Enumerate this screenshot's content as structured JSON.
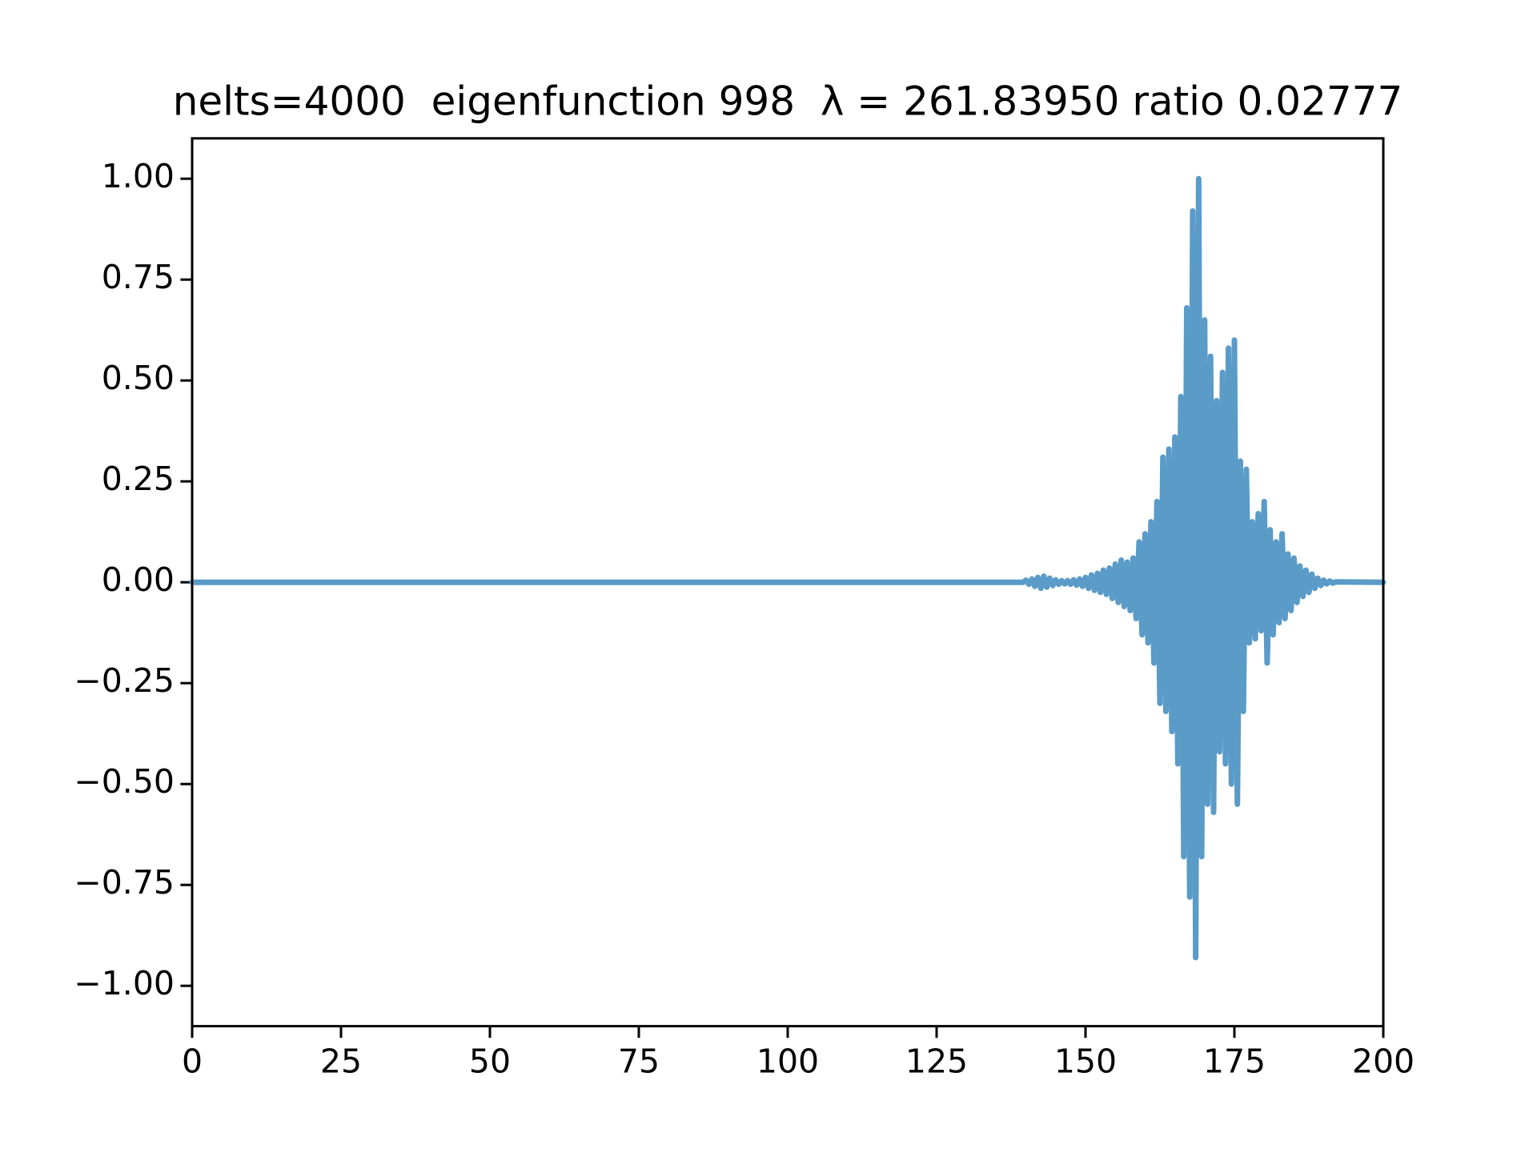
{
  "chart_data": {
    "type": "line",
    "title": "nelts=4000  eigenfunction 998  λ = 261.83950 ratio 0.02777",
    "x": [
      0,
      130,
      139.5,
      140,
      140.5,
      141,
      141.5,
      142,
      142.5,
      143,
      143.5,
      144,
      144.5,
      145,
      145.5,
      146,
      146.5,
      147,
      147.5,
      148,
      148.5,
      149,
      149.5,
      150,
      150.5,
      151,
      151.5,
      152,
      152.5,
      153,
      153.5,
      154,
      154.5,
      155,
      155.5,
      156,
      156.5,
      157,
      157.5,
      158,
      158.5,
      159,
      159.5,
      160,
      160.5,
      161,
      161.5,
      162,
      162.5,
      163,
      163.5,
      164,
      164.5,
      165,
      165.5,
      166,
      166.5,
      167,
      167.5,
      168,
      168.5,
      169,
      169.5,
      170,
      170.5,
      171,
      171.5,
      172,
      172.5,
      173,
      173.5,
      174,
      174.5,
      175,
      175.5,
      176,
      176.5,
      177,
      177.5,
      178,
      178.5,
      179,
      179.5,
      180,
      180.5,
      181,
      181.5,
      182,
      182.5,
      183,
      183.5,
      184,
      184.5,
      185,
      185.5,
      186,
      186.5,
      187,
      187.5,
      188,
      188.5,
      189,
      189.5,
      190,
      190.5,
      191,
      191.5,
      192,
      200
    ],
    "series": [
      {
        "name": "eigenfunction",
        "color": "#5a9bc8",
        "values": [
          0,
          0,
          0,
          0.005,
          -0.005,
          0.008,
          -0.01,
          0.012,
          -0.015,
          0.015,
          -0.012,
          0.01,
          -0.008,
          0.006,
          -0.005,
          0.004,
          -0.004,
          0.004,
          -0.005,
          0.006,
          -0.007,
          0.008,
          -0.01,
          0.012,
          -0.015,
          0.018,
          -0.02,
          0.022,
          -0.025,
          0.03,
          -0.03,
          0.035,
          -0.04,
          0.045,
          -0.05,
          0.055,
          -0.06,
          0.05,
          -0.07,
          0.06,
          -0.09,
          0.1,
          -0.13,
          0.12,
          -0.15,
          0.15,
          -0.2,
          0.2,
          -0.3,
          0.31,
          -0.32,
          0.33,
          -0.37,
          0.36,
          -0.45,
          0.46,
          -0.68,
          0.68,
          -0.78,
          0.92,
          -0.93,
          1.0,
          -0.68,
          0.65,
          -0.55,
          0.56,
          -0.57,
          0.45,
          -0.42,
          0.52,
          -0.45,
          0.58,
          -0.5,
          0.6,
          -0.55,
          0.3,
          -0.32,
          0.28,
          -0.15,
          0.15,
          -0.14,
          0.17,
          -0.12,
          0.2,
          -0.2,
          0.13,
          -0.13,
          0.1,
          -0.1,
          0.12,
          -0.09,
          0.07,
          -0.07,
          0.06,
          -0.05,
          0.04,
          -0.035,
          0.03,
          -0.025,
          0.02,
          -0.015,
          0.01,
          -0.008,
          0.005,
          -0.004,
          0.003,
          -0.002,
          0.001,
          0
        ]
      }
    ],
    "xlim": [
      0,
      200
    ],
    "xticks": [
      0,
      25,
      50,
      75,
      100,
      125,
      150,
      175,
      200
    ],
    "ylim": [
      -1.1,
      1.1
    ],
    "yticks": [
      {
        "value": -1,
        "label": "−1.00"
      },
      {
        "value": -0.75,
        "label": "−0.75"
      },
      {
        "value": -0.5,
        "label": "−0.50"
      },
      {
        "value": -0.25,
        "label": "−0.25"
      },
      {
        "value": 0,
        "label": "0.00"
      },
      {
        "value": 0.25,
        "label": "0.25"
      },
      {
        "value": 0.5,
        "label": "0.50"
      },
      {
        "value": 0.75,
        "label": "0.75"
      },
      {
        "value": 1,
        "label": "1.00"
      }
    ],
    "grid": false
  }
}
